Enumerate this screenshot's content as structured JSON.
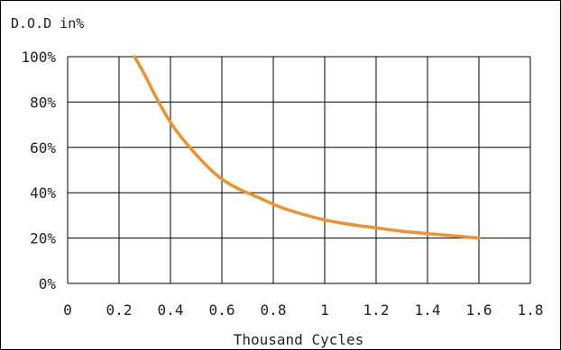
{
  "chart_data": {
    "type": "line",
    "ylabel": "D.O.D in%",
    "xlabel": "Thousand Cycles",
    "xlim": [
      0,
      1.8
    ],
    "ylim": [
      0,
      100
    ],
    "x_tick_labels": [
      "0",
      "0.2",
      "0.4",
      "0.6",
      "0.8",
      "1",
      "1.2",
      "1.4",
      "1.6",
      "1.8"
    ],
    "x_ticks": [
      0,
      0.2,
      0.4,
      0.6,
      0.8,
      1.0,
      1.2,
      1.4,
      1.6,
      1.8
    ],
    "y_tick_labels": [
      "0%",
      "20%",
      "40%",
      "60%",
      "80%",
      "100%"
    ],
    "y_ticks": [
      0,
      20,
      40,
      60,
      80,
      100
    ],
    "grid": true,
    "series": [
      {
        "color": "#f0922b",
        "x": [
          0.26,
          0.3,
          0.34,
          0.4,
          0.46,
          0.54,
          0.6,
          0.66,
          0.74,
          0.82,
          0.9,
          1.0,
          1.1,
          1.2,
          1.3,
          1.4,
          1.5,
          1.6
        ],
        "y": [
          100,
          92,
          83,
          71,
          62,
          52,
          46,
          42,
          38,
          34,
          31,
          28,
          26,
          24.5,
          23,
          22,
          21,
          20
        ]
      }
    ]
  }
}
